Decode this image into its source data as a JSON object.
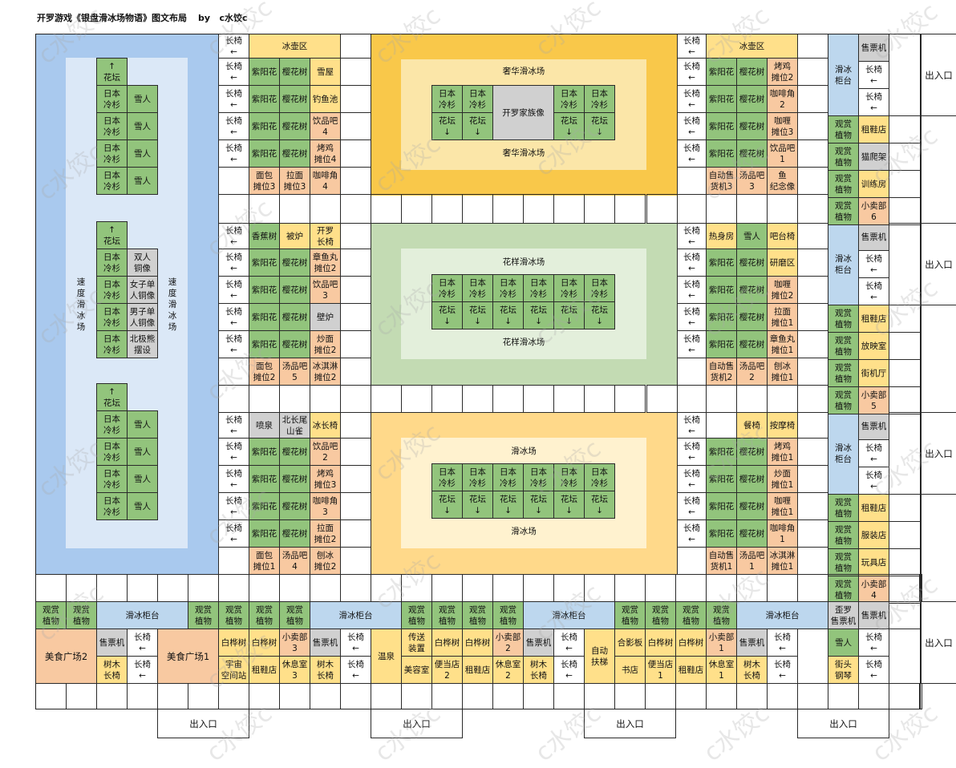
{
  "header": {
    "title": "开罗游戏《银盘滑冰场物语》图文布局",
    "author": "by   c水饺c"
  },
  "watermark": "c水饺c",
  "colors": {
    "green": "#92c47c",
    "pink": "#e8aecf",
    "orange": "#f8c9a1",
    "yellow": "#ffe08a",
    "gray": "#d0d0d0",
    "lightblue": "#bdd7ee",
    "blue_rink": "#a9c9ee",
    "gold": "#f9c84a",
    "greenbg": "#c3dbb3"
  },
  "rinks": {
    "luxury": {
      "label": "奢华滑冰场",
      "statue": "开罗家族像"
    },
    "lucky": {
      "label": "花样滑冰场"
    },
    "regular": {
      "label": "滑冰场"
    },
    "speed": {
      "label": "速\n度\n滑\n冰\n场"
    }
  },
  "labels": {
    "bench": "长椅\n←",
    "kettle": "冰壶区",
    "cedar": "日本\n冷杉",
    "bed": "花坛\n↓",
    "bedup": "↑\n花坛",
    "snowman": "雪人",
    "exit": "出入口",
    "counter": "滑冰\n柜台",
    "counter_h": "滑冰柜台",
    "ticket": "售票机",
    "plant": "观赏\n植物",
    "birch": "白桦树",
    "tree_bench": "树木\n长椅",
    "foodcourt1": "美食广场1",
    "foodcourt2": "美食广场2",
    "escalator": "自动\n扶梯"
  },
  "cells": {
    "ziyang": "紫阳花",
    "sakura": "樱花树",
    "snowhouse": "雪屋",
    "fishpond": "钓鱼池",
    "drink4": "饮品吧\n4",
    "yakitori4": "烤鸡\n摊位4",
    "bread3": "面包\n摊位3",
    "ramen3": "拉面\n摊位3",
    "cafe4": "咖啡角\n4",
    "banana": "香蕉树",
    "stove": "被炉",
    "kairo_chair": "开罗\n长椅",
    "takoyaki2": "章鱼丸\n摊位2",
    "drink3": "饮品吧\n3",
    "fireplace": "壁炉",
    "fried_noodle2": "炒面\n摊位2",
    "bread2": "面包\n摊位2",
    "soup5": "汤品吧\n5",
    "icecream2": "冰淇淋\n摊位2",
    "fountain": "喷泉",
    "longtail": "北长尾\n山雀",
    "icebench": "冰长椅",
    "drink2": "饮品吧\n2",
    "yakitori3": "烤鸡\n摊位3",
    "cafe3": "咖啡角\n3",
    "ramen2": "拉面\n摊位2",
    "bread1": "面包\n摊位1",
    "soup4": "汤品吧\n4",
    "shaved_ice2": "刨冰\n摊位2",
    "yakitori2": "烤鸡\n摊位2",
    "cafe2": "咖啡角\n2",
    "curry3": "咖喱\n摊位3",
    "drink1": "饮品吧\n1",
    "vending3": "自动售\n货机3",
    "soup3": "汤品吧\n3",
    "fish_statue": "鱼\n纪念像",
    "sauna": "热身房",
    "bar_chair": "吧台椅",
    "study": "研磨区",
    "curry2": "咖喱\n摊位2",
    "ramen1": "拉面\n摊位1",
    "takoyaki1": "章鱼丸\n摊位1",
    "vending2": "自动售\n货机2",
    "soup2": "汤品吧\n2",
    "shaved_ice1": "刨冰\n摊位1",
    "dining_chair": "餐椅",
    "massage": "按摩椅",
    "yakitori1": "烤鸡\n摊位1",
    "fried_noodle1": "炒面\n摊位1",
    "curry1": "咖喱\n摊位1",
    "cafe1": "咖啡角\n1",
    "vending1": "自动售\n货机1",
    "soup1": "汤品吧\n1",
    "icecream1": "冰淇淋\n摊位1",
    "rental": "租鞋店",
    "cat_tower": "猫爬架",
    "training": "训练房",
    "shop6": "小卖部\n6",
    "cinema": "放映室",
    "arcade": "街机厅",
    "shop5": "小卖部\n5",
    "clothes": "服装店",
    "toy": "玩具店",
    "shop4": "小卖部\n4",
    "statue_couple": "双人\n铜像",
    "statue_woman": "女子单\n人铜像",
    "statue_man": "男子单\n人铜像",
    "polar_bear": "北极熊\n摆设",
    "shop3": "小卖部\n3",
    "space": "宇宙\n空间站",
    "rest3": "休息室\n3",
    "hot_spring": "温泉",
    "teleport": "传送\n装置",
    "beauty": "美容室",
    "bento2": "便当店\n2",
    "shop2": "小卖部\n2",
    "rest2": "休息室\n2",
    "plywood": "合影板",
    "bookstore": "书店",
    "bento1": "便当店\n1",
    "shop1": "小卖部\n1",
    "rest1": "休息室\n1",
    "kairo_ticket": "歪罗\n售票机",
    "street_piano": "街头\n钢琴"
  }
}
